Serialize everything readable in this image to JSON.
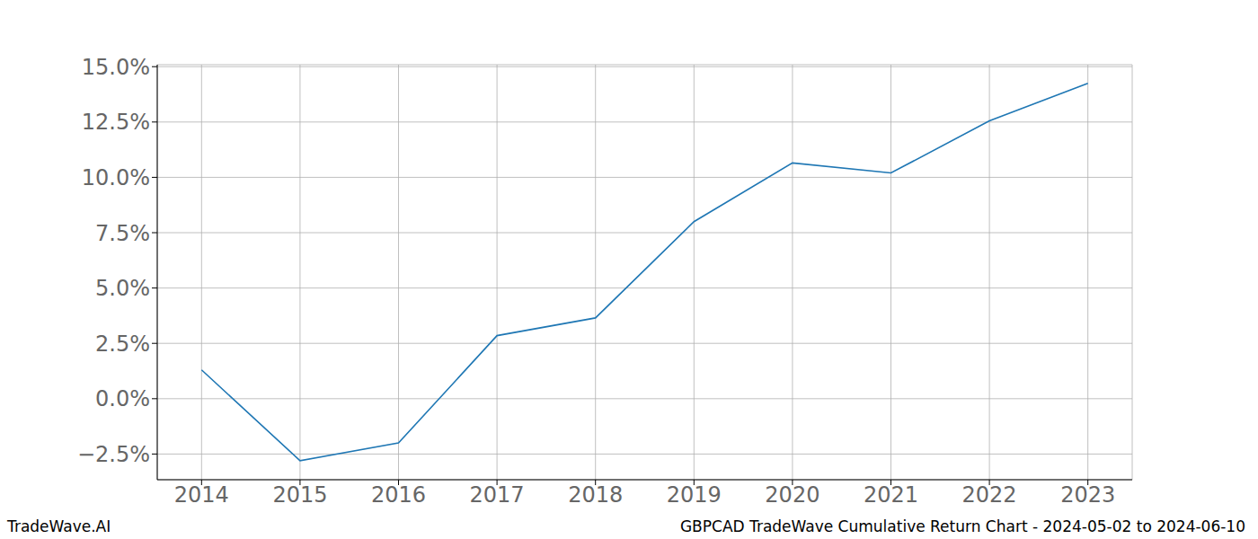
{
  "chart_data": {
    "type": "line",
    "title": "GBPCAD TradeWave Cumulative Return Chart - 2024-05-02 to 2024-06-10",
    "source": "TradeWave.AI",
    "x": [
      2014,
      2015,
      2016,
      2017,
      2018,
      2019,
      2020,
      2021,
      2022,
      2023
    ],
    "values": [
      1.3,
      -2.8,
      -2.0,
      2.85,
      3.65,
      8.0,
      10.65,
      10.2,
      12.55,
      14.25
    ],
    "color": "#1f77b4",
    "xlim": [
      2013.55,
      2023.45
    ],
    "xticks": [
      2014,
      2015,
      2016,
      2017,
      2018,
      2019,
      2020,
      2021,
      2022,
      2023
    ],
    "ylim": [
      -3.66,
      15.09
    ],
    "yticks": [
      {
        "value": -2.5,
        "label": "−2.5%"
      },
      {
        "value": 0,
        "label": "0.0%"
      },
      {
        "value": 2.5,
        "label": "2.5%"
      },
      {
        "value": 5,
        "label": "5.0%"
      },
      {
        "value": 7.5,
        "label": "7.5%"
      },
      {
        "value": 10,
        "label": "10.0%"
      },
      {
        "value": 12.5,
        "label": "12.5%"
      },
      {
        "value": 15,
        "label": "15.0%"
      }
    ],
    "grid": true
  }
}
